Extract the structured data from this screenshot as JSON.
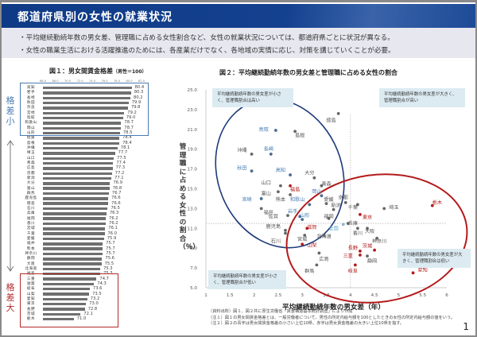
{
  "header": {
    "title": "都道府県別の女性の就業状況"
  },
  "summary": {
    "bullets": [
      "・平均継続勤続年数の男女差、管理職に占める女性割合など、女性の就業状況については、都道府県ごとに状況が異なる。",
      "・女性の職業生活における活躍推進のためには、各産業だけでなく、各地域の実情に応じ、対策を講じていくことが必要。"
    ]
  },
  "fig1": {
    "title": "図１：男女間賃金格差",
    "subtitle": "（男性＝100）",
    "side_small": "格差小",
    "side_large": "格差大"
  },
  "fig2": {
    "title": "図２：平均継続勤続年数の男女差と管理職に占める女性の割合",
    "ylabel": "管理職に占める女性の割合（％）",
    "xlabel": "平均継続勤続年数の男女差（年）",
    "quadrant_notes": {
      "top_left": "平均継続勤続年数の男女差が小さく、管理職割合は高い",
      "top_right": "平均継続勤続年数の男女差が大きく、管理職割合が高い",
      "bottom_left": "平均継続勤続年数の男女差が小さく、管理職割合が低い",
      "bottom_right": "平均継続勤続年数の男女差が大きく、管理職割合は低い"
    }
  },
  "footnotes": [
    "（資料出所）図１、図２共に厚生労働省「賃金構造基本統計調査」により作成",
    "（注１）図１の男女間賃金格差とは、一般労働者について、男性の所定内給与額を100としたときの女性の所定内給与額の値をいう。",
    "（注２）図２の青字は男女間賃金格差の小さい上位10県、赤字は男女賃金格差の大きい上位10県を指す。"
  ],
  "page_number": "1",
  "colors": {
    "header": "#14418f",
    "small_gap": "#4b7bb2",
    "large_gap": "#b22a2a",
    "neutral": "#555555",
    "bar": "#6f6f6f",
    "national": "#5aa6c8"
  },
  "chart_data": [
    {
      "type": "bar",
      "orientation": "horizontal",
      "title": "図１：男女間賃金格差（男性＝100）",
      "xlim": [
        66,
        82
      ],
      "xticks": [
        "66.0",
        "68.0",
        "70.0",
        "72.0",
        "74.0",
        "76.0",
        "78.0",
        "80.0",
        "82.0"
      ],
      "categories": [
        "高知",
        "岩手",
        "長崎",
        "秋田",
        "奈良",
        "宮崎",
        "鳥取",
        "和歌山",
        "岡山",
        "山形",
        "佐賀",
        "島根",
        "沖縄",
        "埼玉",
        "山口",
        "青森",
        "広島",
        "京都",
        "新潟",
        "大分",
        "富山",
        "群馬",
        "鹿児島",
        "徳島",
        "石川",
        "兵庫",
        "福岡",
        "香川",
        "宮城",
        "千葉",
        "愛媛",
        "福井",
        "熊本",
        "神奈川",
        "静岡",
        "大阪",
        "北海道",
        "福島",
        "三重",
        "滋賀",
        "岐阜",
        "山梨",
        "愛知",
        "東京",
        "長野",
        "茨城",
        "栃木"
      ],
      "values": [
        80.4,
        80.3,
        80.2,
        79.9,
        79.8,
        79.2,
        79.0,
        78.7,
        78.7,
        78.5,
        78.4,
        78.4,
        78.1,
        77.7,
        77.5,
        77.4,
        77.3,
        77.2,
        77.1,
        76.9,
        76.8,
        76.7,
        76.6,
        76.6,
        76.5,
        76.3,
        76.2,
        76.2,
        76.1,
        76.0,
        75.9,
        75.7,
        75.7,
        75.7,
        75.6,
        75.5,
        75.3,
        75.3,
        74.7,
        74.3,
        73.6,
        73.5,
        73.2,
        73.0,
        72.8,
        72.1,
        71.0
      ],
      "annotations": [
        "格差小 (top 10 boxed blue)",
        "格差大 (bottom 10 boxed red)"
      ]
    },
    {
      "type": "scatter",
      "title": "図２：平均継続勤続年数の男女差と管理職に占める女性の割合",
      "xlabel": "平均継続勤続年数の男女差（年）",
      "ylabel": "管理職に占める女性の割合（％）",
      "xlim": [
        1,
        6
      ],
      "ylim": [
        5,
        25
      ],
      "xticks": [
        "1",
        "1.5",
        "2",
        "2.5",
        "3",
        "3.5",
        "4",
        "4.5",
        "5",
        "5.5",
        "6"
      ],
      "yticks": [
        "5.0",
        "7.0",
        "9.0",
        "11.0",
        "13.0",
        "15.0",
        "17.0",
        "19.0",
        "21.0",
        "23.0",
        "25.0"
      ],
      "reference_lines": {
        "x": 4.0,
        "y": 11.5
      },
      "points": [
        {
          "name": "徳島",
          "x": 3.75,
          "y": 22.6,
          "group": "neutral",
          "lx": 3.6,
          "ly": 21.9
        },
        {
          "name": "鳥取",
          "x": 2.45,
          "y": 20.9,
          "group": "small",
          "lx": 2.2,
          "ly": 21.0
        },
        {
          "name": "島根",
          "x": 2.85,
          "y": 20.8,
          "group": "neutral",
          "lx": 2.95,
          "ly": 20.4
        },
        {
          "name": "沖縄",
          "x": 1.95,
          "y": 18.5,
          "group": "neutral",
          "lx": 1.75,
          "ly": 18.9
        },
        {
          "name": "長崎",
          "x": 2.35,
          "y": 18.5,
          "group": "small",
          "lx": 2.3,
          "ly": 19.0
        },
        {
          "name": "秋田",
          "x": 1.95,
          "y": 16.8,
          "group": "small",
          "lx": 1.75,
          "ly": 17.1
        },
        {
          "name": "高知",
          "x": 2.75,
          "y": 16.4,
          "group": "small",
          "lx": 2.55,
          "ly": 16.9
        },
        {
          "name": "大分",
          "x": 3.25,
          "y": 16.1,
          "group": "neutral",
          "lx": 3.15,
          "ly": 16.6
        },
        {
          "name": "山口",
          "x": 2.55,
          "y": 15.3,
          "group": "neutral",
          "lx": 2.25,
          "ly": 15.6
        },
        {
          "name": "福島",
          "x": 2.75,
          "y": 15.3,
          "group": "large",
          "lx": 2.85,
          "ly": 14.9
        },
        {
          "name": "青森",
          "x": 3.4,
          "y": 15.3,
          "group": "neutral",
          "lx": 3.5,
          "ly": 15.5
        },
        {
          "name": "富山",
          "x": 2.5,
          "y": 14.7,
          "group": "neutral",
          "lx": 2.25,
          "ly": 14.5
        },
        {
          "name": "岡山",
          "x": 3.4,
          "y": 14.3,
          "group": "small",
          "lx": 3.3,
          "ly": 14.7
        },
        {
          "name": "熊本",
          "x": 2.75,
          "y": 14.4,
          "group": "neutral",
          "lx": 2.55,
          "ly": 13.9
        },
        {
          "name": "宮崎",
          "x": 2.15,
          "y": 14.0,
          "group": "small",
          "lx": 1.85,
          "ly": 13.9
        },
        {
          "name": "和歌山",
          "x": 3.15,
          "y": 13.4,
          "group": "small",
          "lx": 2.9,
          "ly": 13.9
        },
        {
          "name": "愛媛",
          "x": 3.5,
          "y": 13.5,
          "group": "neutral",
          "lx": 3.55,
          "ly": 13.9
        },
        {
          "name": "京都",
          "x": 3.9,
          "y": 13.6,
          "group": "neutral",
          "lx": 3.85,
          "ly": 14.1
        },
        {
          "name": "福井",
          "x": 2.15,
          "y": 13.0,
          "group": "neutral",
          "lx": 2.3,
          "ly": 12.6
        },
        {
          "name": "新潟",
          "x": 3.65,
          "y": 12.9,
          "group": "neutral",
          "lx": 3.7,
          "ly": 13.3
        },
        {
          "name": "岩手",
          "x": 2.95,
          "y": 12.2,
          "group": "small",
          "lx": 2.8,
          "ly": 12.7
        },
        {
          "name": "山形",
          "x": 3.0,
          "y": 11.9,
          "group": "small",
          "lx": 3.05,
          "ly": 12.3
        },
        {
          "name": "佐賀",
          "x": 2.7,
          "y": 12.3,
          "group": "neutral",
          "lx": 2.4,
          "ly": 12.2
        },
        {
          "name": "福岡",
          "x": 3.55,
          "y": 12.0,
          "group": "neutral",
          "lx": 3.55,
          "ly": 12.2
        },
        {
          "name": "東京",
          "x": 4.2,
          "y": 12.4,
          "group": "large",
          "lx": 4.35,
          "ly": 12.1
        },
        {
          "name": "千葉",
          "x": 4.15,
          "y": 13.4,
          "group": "neutral",
          "lx": 4.05,
          "ly": 13.1
        },
        {
          "name": "埼玉",
          "x": 4.7,
          "y": 13.0,
          "group": "neutral",
          "lx": 4.9,
          "ly": 13.1
        },
        {
          "name": "栃木",
          "x": 5.7,
          "y": 13.3,
          "group": "large",
          "lx": 5.8,
          "ly": 13.6
        },
        {
          "name": "鹿児島",
          "x": 2.65,
          "y": 10.8,
          "group": "neutral",
          "lx": 2.4,
          "ly": 11.2
        },
        {
          "name": "全国",
          "x": 3.85,
          "y": 11.4,
          "group": "national",
          "lx": 3.65,
          "ly": 11.0
        },
        {
          "name": "兵庫",
          "x": 3.95,
          "y": 11.5,
          "group": "neutral",
          "lx": 4.05,
          "ly": 11.5
        },
        {
          "name": "滋賀",
          "x": 3.1,
          "y": 11.0,
          "group": "large",
          "lx": 3.2,
          "ly": 11.1
        },
        {
          "name": "北海道",
          "x": 3.45,
          "y": 10.3,
          "group": "neutral",
          "lx": 3.45,
          "ly": 10.2
        },
        {
          "name": "香川",
          "x": 4.15,
          "y": 11.0,
          "group": "neutral",
          "lx": 4.15,
          "ly": 10.5
        },
        {
          "name": "大阪",
          "x": 4.35,
          "y": 11.0,
          "group": "neutral",
          "lx": 4.4,
          "ly": 10.7
        },
        {
          "name": "石川",
          "x": 2.65,
          "y": 10.5,
          "group": "neutral",
          "lx": 2.45,
          "ly": 9.7
        },
        {
          "name": "宮城",
          "x": 3.05,
          "y": 10.3,
          "group": "neutral",
          "lx": 3.0,
          "ly": 9.9
        },
        {
          "name": "神奈川",
          "x": 4.55,
          "y": 10.0,
          "group": "neutral",
          "lx": 4.6,
          "ly": 9.7
        },
        {
          "name": "山梨",
          "x": 3.0,
          "y": 9.4,
          "group": "large",
          "lx": 3.2,
          "ly": 9.3
        },
        {
          "name": "長野",
          "x": 4.2,
          "y": 8.7,
          "group": "large",
          "lx": 4.05,
          "ly": 9.0
        },
        {
          "name": "茨城",
          "x": 4.5,
          "y": 8.8,
          "group": "large",
          "lx": 4.35,
          "ly": 9.2
        },
        {
          "name": "三重",
          "x": 4.2,
          "y": 8.3,
          "group": "large",
          "lx": 3.95,
          "ly": 8.2
        },
        {
          "name": "静岡",
          "x": 4.35,
          "y": 8.2,
          "group": "neutral",
          "lx": 4.45,
          "ly": 7.7
        },
        {
          "name": "広島",
          "x": 3.35,
          "y": 8.5,
          "group": "neutral",
          "lx": 3.45,
          "ly": 7.9
        },
        {
          "name": "群馬",
          "x": 3.3,
          "y": 7.3,
          "group": "neutral",
          "lx": 3.15,
          "ly": 6.7
        },
        {
          "name": "岐阜",
          "x": 4.1,
          "y": 7.3,
          "group": "large",
          "lx": 4.05,
          "ly": 6.7
        },
        {
          "name": "愛知",
          "x": 5.3,
          "y": 6.5,
          "group": "large",
          "lx": 5.5,
          "ly": 6.8
        }
      ]
    }
  ]
}
